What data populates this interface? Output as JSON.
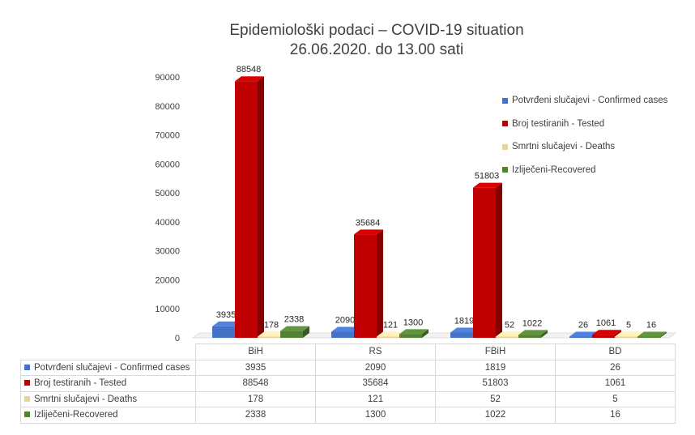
{
  "chart_data": {
    "type": "bar",
    "title": "Epidemiološki podaci – COVID-19 situation",
    "subtitle": "26.06.2020. do 13.00 sati",
    "categories": [
      "BiH",
      "RS",
      "FBiH",
      "BD"
    ],
    "ylim": [
      0,
      90000
    ],
    "yticks": [
      0,
      10000,
      20000,
      30000,
      40000,
      50000,
      60000,
      70000,
      80000,
      90000
    ],
    "legend_position": "right",
    "series": [
      {
        "name": "Potvrđeni slučajevi - Confirmed cases",
        "color": "#4472c4",
        "values": [
          3935,
          2090,
          1819,
          26
        ]
      },
      {
        "name": "Broj testiranih - Tested",
        "color": "#c00000",
        "values": [
          88548,
          35684,
          51803,
          1061
        ]
      },
      {
        "name": "Smrtni slučajevi - Deaths",
        "color": "#e7d3a0",
        "values": [
          178,
          121,
          52,
          5
        ]
      },
      {
        "name": "Izliječeni-Recovered",
        "color": "#548235",
        "values": [
          2338,
          1300,
          1022,
          16
        ]
      }
    ]
  }
}
